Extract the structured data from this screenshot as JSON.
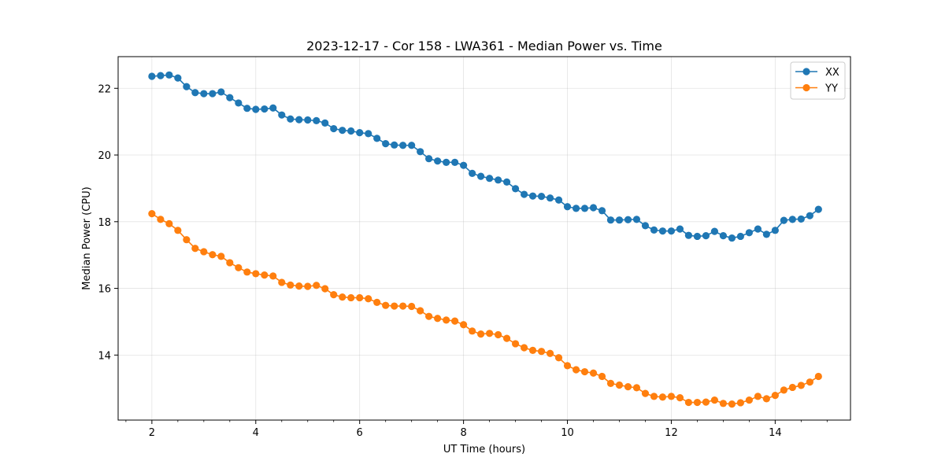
{
  "chart_data": {
    "type": "line",
    "title": "2023-12-17 - Cor 158 - LWA361 - Median Power vs. Time",
    "xlabel": "UT Time (hours)",
    "ylabel": "Median Power (CPU)",
    "xlim": [
      1.35,
      15.45
    ],
    "ylim": [
      12.05,
      22.95
    ],
    "xticks": [
      2,
      4,
      6,
      8,
      10,
      12,
      14
    ],
    "yticks": [
      14,
      16,
      18,
      20,
      22
    ],
    "grid": true,
    "legend_position": "top-right",
    "x": [
      2.0,
      2.167,
      2.333,
      2.5,
      2.667,
      2.833,
      3.0,
      3.167,
      3.333,
      3.5,
      3.667,
      3.833,
      4.0,
      4.167,
      4.333,
      4.5,
      4.667,
      4.833,
      5.0,
      5.167,
      5.333,
      5.5,
      5.667,
      5.833,
      6.0,
      6.167,
      6.333,
      6.5,
      6.667,
      6.833,
      7.0,
      7.167,
      7.333,
      7.5,
      7.667,
      7.833,
      8.0,
      8.167,
      8.333,
      8.5,
      8.667,
      8.833,
      9.0,
      9.167,
      9.333,
      9.5,
      9.667,
      9.833,
      10.0,
      10.167,
      10.333,
      10.5,
      10.667,
      10.833,
      11.0,
      11.167,
      11.333,
      11.5,
      11.667,
      11.833,
      12.0,
      12.167,
      12.333,
      12.5,
      12.667,
      12.833,
      13.0,
      13.167,
      13.333,
      13.5,
      13.667,
      13.833,
      14.0,
      14.167,
      14.333,
      14.5,
      14.667,
      14.833
    ],
    "series": [
      {
        "name": "XX",
        "color": "#1f77b4",
        "values": [
          22.36,
          22.38,
          22.4,
          22.31,
          22.05,
          21.87,
          21.84,
          21.84,
          21.89,
          21.72,
          21.56,
          21.4,
          21.37,
          21.38,
          21.41,
          21.2,
          21.08,
          21.06,
          21.05,
          21.03,
          20.96,
          20.79,
          20.74,
          20.72,
          20.67,
          20.64,
          20.5,
          20.34,
          20.3,
          20.29,
          20.29,
          20.1,
          19.89,
          19.82,
          19.78,
          19.78,
          19.69,
          19.45,
          19.36,
          19.3,
          19.25,
          19.19,
          18.99,
          18.82,
          18.77,
          18.76,
          18.71,
          18.65,
          18.45,
          18.4,
          18.4,
          18.42,
          18.33,
          18.05,
          18.05,
          18.06,
          18.07,
          17.88,
          17.75,
          17.72,
          17.72,
          17.78,
          17.59,
          17.56,
          17.58,
          17.71,
          17.58,
          17.51,
          17.56,
          17.67,
          17.78,
          17.62,
          17.74,
          18.04,
          18.07,
          18.08,
          18.18,
          18.37
        ]
      },
      {
        "name": "YY",
        "color": "#ff7f0e",
        "values": [
          18.24,
          18.07,
          17.94,
          17.74,
          17.46,
          17.2,
          17.1,
          17.01,
          16.96,
          16.77,
          16.62,
          16.49,
          16.44,
          16.4,
          16.37,
          16.18,
          16.1,
          16.07,
          16.06,
          16.09,
          15.99,
          15.81,
          15.74,
          15.72,
          15.72,
          15.69,
          15.58,
          15.49,
          15.47,
          15.47,
          15.46,
          15.33,
          15.16,
          15.1,
          15.05,
          15.02,
          14.91,
          14.72,
          14.63,
          14.65,
          14.61,
          14.5,
          14.34,
          14.22,
          14.14,
          14.11,
          14.05,
          13.92,
          13.68,
          13.56,
          13.5,
          13.46,
          13.36,
          13.15,
          13.1,
          13.05,
          13.02,
          12.85,
          12.76,
          12.74,
          12.76,
          12.72,
          12.58,
          12.58,
          12.59,
          12.65,
          12.55,
          12.53,
          12.57,
          12.65,
          12.76,
          12.69,
          12.79,
          12.95,
          13.03,
          13.09,
          13.19,
          13.36
        ]
      }
    ]
  }
}
